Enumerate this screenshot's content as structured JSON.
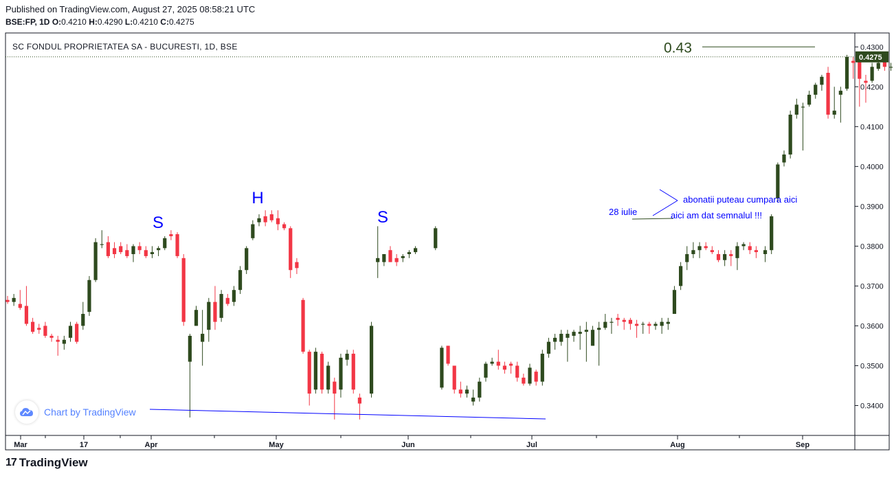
{
  "header": {
    "published": "Published on TradingView.com, August 27, 2025 08:58:21 UTC",
    "symbol": "BSE:FP, 1D",
    "o_label": "O:",
    "o": "0.4210",
    "h_label": "H:",
    "h": "0.4290",
    "l_label": "L:",
    "l": "0.4210",
    "c_label": "C:",
    "c": "0.4275"
  },
  "footer": {
    "brand": "TradingView",
    "logo": "17"
  },
  "watermark": {
    "text": "Chart by TradingView"
  },
  "chart_data": {
    "type": "candlestick",
    "title": "SC FONDUL PROPRIETATEA SA - BUCURESTI, 1D, BSE",
    "ylim": [
      0.3325,
      0.4335
    ],
    "y_ticks": [
      "0.4300",
      "0.4200",
      "0.4100",
      "0.4000",
      "0.3900",
      "0.3800",
      "0.3700",
      "0.3600",
      "0.3500",
      "0.3400"
    ],
    "x_ticks": [
      "Mar",
      "17",
      "Apr",
      "May",
      "Jun",
      "Jul",
      "Aug",
      "Sep"
    ],
    "last_price": "0.4275",
    "colors": {
      "up": "#2e4a1e",
      "down": "#f23645",
      "axis_text": "#131722",
      "annotation": "#0000ff",
      "price_label_bg": "#2e4a1e"
    },
    "candles": [
      [
        0.3665,
        0.3675,
        0.3655,
        0.366
      ],
      [
        0.366,
        0.368,
        0.365,
        0.367
      ],
      [
        0.3655,
        0.369,
        0.364,
        0.3645
      ],
      [
        0.365,
        0.37,
        0.36,
        0.3605
      ],
      [
        0.361,
        0.362,
        0.358,
        0.3585
      ],
      [
        0.3595,
        0.3605,
        0.358,
        0.359
      ],
      [
        0.36,
        0.361,
        0.357,
        0.3575
      ],
      [
        0.3575,
        0.358,
        0.356,
        0.357
      ],
      [
        0.3565,
        0.3575,
        0.3525,
        0.356
      ],
      [
        0.3555,
        0.3575,
        0.354,
        0.3565
      ],
      [
        0.357,
        0.361,
        0.356,
        0.36
      ],
      [
        0.3605,
        0.361,
        0.3555,
        0.356
      ],
      [
        0.36,
        0.366,
        0.359,
        0.363
      ],
      [
        0.3635,
        0.3725,
        0.3625,
        0.3715
      ],
      [
        0.3715,
        0.382,
        0.371,
        0.381
      ],
      [
        0.3805,
        0.384,
        0.3795,
        0.3805
      ],
      [
        0.381,
        0.3825,
        0.377,
        0.3775
      ],
      [
        0.3795,
        0.381,
        0.377,
        0.378
      ],
      [
        0.38,
        0.381,
        0.378,
        0.3785
      ],
      [
        0.379,
        0.3805,
        0.377,
        0.3775
      ],
      [
        0.378,
        0.3805,
        0.376,
        0.38
      ],
      [
        0.38,
        0.381,
        0.378,
        0.379
      ],
      [
        0.379,
        0.38,
        0.377,
        0.3775
      ],
      [
        0.378,
        0.38,
        0.377,
        0.3785
      ],
      [
        0.379,
        0.38,
        0.3775,
        0.3795
      ],
      [
        0.3795,
        0.3825,
        0.379,
        0.382
      ],
      [
        0.383,
        0.384,
        0.3815,
        0.3825
      ],
      [
        0.383,
        0.3835,
        0.377,
        0.3775
      ],
      [
        0.377,
        0.378,
        0.36,
        0.361
      ],
      [
        0.351,
        0.358,
        0.337,
        0.3575
      ],
      [
        0.36,
        0.365,
        0.36,
        0.364
      ],
      [
        0.356,
        0.364,
        0.35,
        0.358
      ],
      [
        0.359,
        0.367,
        0.356,
        0.366
      ],
      [
        0.366,
        0.37,
        0.359,
        0.361
      ],
      [
        0.362,
        0.369,
        0.361,
        0.368
      ],
      [
        0.367,
        0.368,
        0.365,
        0.3655
      ],
      [
        0.366,
        0.37,
        0.365,
        0.369
      ],
      [
        0.369,
        0.375,
        0.368,
        0.374
      ],
      [
        0.374,
        0.38,
        0.373,
        0.3795
      ],
      [
        0.382,
        0.3865,
        0.3815,
        0.3855
      ],
      [
        0.386,
        0.388,
        0.385,
        0.387
      ],
      [
        0.3875,
        0.389,
        0.385,
        0.386
      ],
      [
        0.388,
        0.389,
        0.386,
        0.3865
      ],
      [
        0.387,
        0.389,
        0.384,
        0.3855
      ],
      [
        0.3855,
        0.386,
        0.384,
        0.3845
      ],
      [
        0.3845,
        0.385,
        0.372,
        0.374
      ],
      [
        0.376,
        0.377,
        0.373,
        0.3745
      ],
      [
        0.3665,
        0.367,
        0.353,
        0.3535
      ],
      [
        0.3535,
        0.354,
        0.34,
        0.343
      ],
      [
        0.344,
        0.3545,
        0.343,
        0.3535
      ],
      [
        0.353,
        0.3535,
        0.343,
        0.344
      ],
      [
        0.344,
        0.351,
        0.343,
        0.35
      ],
      [
        0.346,
        0.347,
        0.3365,
        0.343
      ],
      [
        0.344,
        0.353,
        0.342,
        0.352
      ],
      [
        0.3515,
        0.354,
        0.35,
        0.353
      ],
      [
        0.353,
        0.354,
        0.343,
        0.344
      ],
      [
        0.342,
        0.343,
        0.3365,
        0.3405
      ],
      [
        0.343,
        0.361,
        0.342,
        0.36
      ],
      [
        0.376,
        0.385,
        0.372,
        0.377
      ],
      [
        0.376,
        0.378,
        0.375,
        0.378
      ],
      [
        0.379,
        0.38,
        0.376,
        0.376
      ],
      [
        0.377,
        0.378,
        0.375,
        0.376
      ],
      [
        0.377,
        0.378,
        0.376,
        0.3775
      ],
      [
        0.378,
        0.379,
        0.377,
        0.3785
      ],
      [
        0.3785,
        0.38,
        0.378,
        0.3795
      ],
      [
        0.3795,
        0.385,
        0.379,
        0.3845
      ],
      [
        0.3445,
        0.355,
        0.344,
        0.3545
      ],
      [
        0.355,
        0.355,
        0.35,
        0.3505
      ],
      [
        0.35,
        0.35,
        0.343,
        0.344
      ],
      [
        0.344,
        0.346,
        0.342,
        0.343
      ],
      [
        0.343,
        0.345,
        0.342,
        0.344
      ],
      [
        0.341,
        0.344,
        0.34,
        0.342
      ],
      [
        0.342,
        0.347,
        0.341,
        0.346
      ],
      [
        0.347,
        0.351,
        0.346,
        0.3505
      ],
      [
        0.3505,
        0.352,
        0.35,
        0.351
      ],
      [
        0.351,
        0.354,
        0.349,
        0.35
      ],
      [
        0.35,
        0.351,
        0.348,
        0.349
      ],
      [
        0.3505,
        0.351,
        0.348,
        0.35
      ],
      [
        0.35,
        0.351,
        0.346,
        0.347
      ],
      [
        0.347,
        0.348,
        0.345,
        0.3455
      ],
      [
        0.3455,
        0.3505,
        0.345,
        0.3495
      ],
      [
        0.3485,
        0.349,
        0.345,
        0.346
      ],
      [
        0.346,
        0.354,
        0.345,
        0.353
      ],
      [
        0.353,
        0.357,
        0.352,
        0.356
      ],
      [
        0.356,
        0.358,
        0.354,
        0.357
      ],
      [
        0.356,
        0.359,
        0.355,
        0.358
      ],
      [
        0.357,
        0.359,
        0.351,
        0.358
      ],
      [
        0.3575,
        0.359,
        0.356,
        0.3585
      ],
      [
        0.358,
        0.36,
        0.354,
        0.3585
      ],
      [
        0.3585,
        0.361,
        0.351,
        0.359
      ],
      [
        0.355,
        0.36,
        0.355,
        0.359
      ],
      [
        0.359,
        0.361,
        0.35,
        0.3595
      ],
      [
        0.3595,
        0.363,
        0.359,
        0.361
      ],
      [
        0.361,
        0.362,
        0.358,
        0.361
      ],
      [
        0.362,
        0.363,
        0.36,
        0.3615
      ],
      [
        0.3615,
        0.362,
        0.359,
        0.361
      ],
      [
        0.3615,
        0.362,
        0.359,
        0.3605
      ],
      [
        0.3605,
        0.3615,
        0.357,
        0.36
      ],
      [
        0.3605,
        0.361,
        0.358,
        0.3605
      ],
      [
        0.3605,
        0.361,
        0.358,
        0.36
      ],
      [
        0.36,
        0.361,
        0.359,
        0.3605
      ],
      [
        0.36,
        0.362,
        0.358,
        0.361
      ],
      [
        0.3605,
        0.362,
        0.359,
        0.361
      ],
      [
        0.363,
        0.37,
        0.363,
        0.369
      ],
      [
        0.37,
        0.376,
        0.369,
        0.375
      ],
      [
        0.376,
        0.38,
        0.374,
        0.378
      ],
      [
        0.378,
        0.381,
        0.377,
        0.379
      ],
      [
        0.379,
        0.381,
        0.377,
        0.38
      ],
      [
        0.38,
        0.381,
        0.379,
        0.3795
      ],
      [
        0.379,
        0.38,
        0.378,
        0.3785
      ],
      [
        0.378,
        0.379,
        0.376,
        0.3765
      ],
      [
        0.3765,
        0.379,
        0.375,
        0.378
      ],
      [
        0.378,
        0.379,
        0.375,
        0.3775
      ],
      [
        0.377,
        0.381,
        0.374,
        0.38
      ],
      [
        0.38,
        0.381,
        0.379,
        0.3805
      ],
      [
        0.38,
        0.381,
        0.378,
        0.379
      ],
      [
        0.379,
        0.38,
        0.377,
        0.3785
      ],
      [
        0.378,
        0.38,
        0.376,
        0.379
      ],
      [
        0.379,
        0.388,
        0.378,
        0.3875
      ],
      [
        0.392,
        0.401,
        0.391,
        0.4005
      ],
      [
        0.401,
        0.404,
        0.4,
        0.403
      ],
      [
        0.403,
        0.414,
        0.402,
        0.413
      ],
      [
        0.413,
        0.417,
        0.412,
        0.4155
      ],
      [
        0.415,
        0.416,
        0.404,
        0.415
      ],
      [
        0.4155,
        0.419,
        0.415,
        0.418
      ],
      [
        0.418,
        0.421,
        0.417,
        0.4205
      ],
      [
        0.4205,
        0.423,
        0.419,
        0.4225
      ],
      [
        0.4235,
        0.425,
        0.412,
        0.413
      ],
      [
        0.413,
        0.42,
        0.412,
        0.414
      ],
      [
        0.418,
        0.42,
        0.411,
        0.419
      ],
      [
        0.4195,
        0.428,
        0.419,
        0.4275
      ],
      [
        0.4265,
        0.4275,
        0.422,
        0.426
      ],
      [
        0.427,
        0.4275,
        0.415,
        0.422
      ],
      [
        0.4215,
        0.423,
        0.416,
        0.421
      ],
      [
        0.4215,
        0.426,
        0.421,
        0.425
      ],
      [
        0.4245,
        0.4265,
        0.424,
        0.426
      ],
      [
        0.4265,
        0.427,
        0.424,
        0.425
      ],
      [
        0.425,
        0.426,
        0.424,
        0.425
      ],
      [
        0.425,
        0.426,
        0.424,
        0.4255
      ],
      [
        0.425,
        0.426,
        0.42,
        0.421
      ],
      [
        0.421,
        0.429,
        0.421,
        0.4275
      ]
    ],
    "annotations": {
      "S_left": "S",
      "H": "H",
      "S_right": "S",
      "target": "0.43",
      "date_note": "28 iulie",
      "note1": "abonatii puteau cumpara aici",
      "note2": "aici am dat semnalul !!!"
    }
  }
}
